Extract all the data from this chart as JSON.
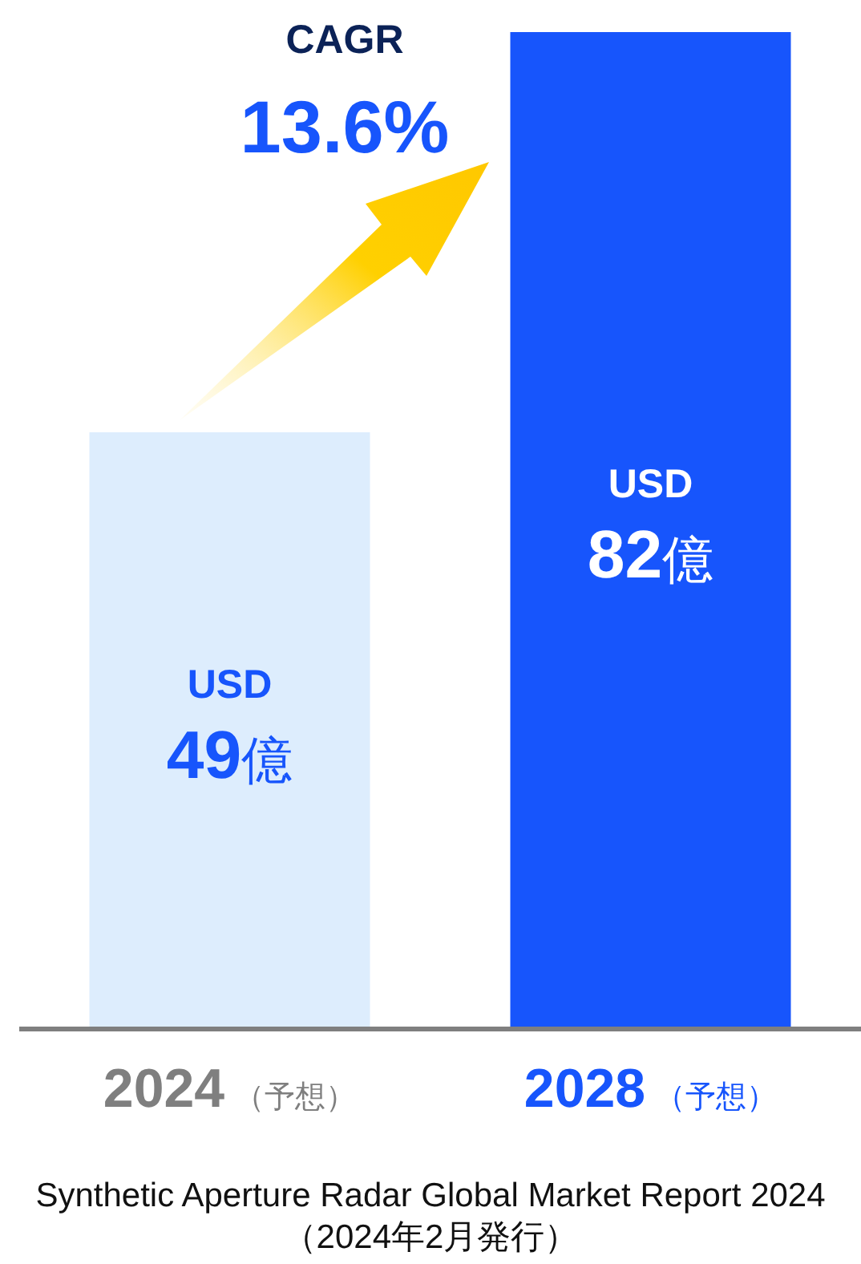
{
  "chart_data": {
    "type": "bar",
    "categories": [
      "2024（予想）",
      "2028（予想）"
    ],
    "values": [
      49,
      82
    ],
    "colors": [
      "#ddedfd",
      "#1755fc"
    ],
    "value_labels": [
      "USD 49億",
      "USD 82億"
    ],
    "annotations": [
      "CAGR",
      "13.6%",
      "Synthetic Aperture Radar Global Market Report 2024（2024年2月発行）"
    ]
  }
}
